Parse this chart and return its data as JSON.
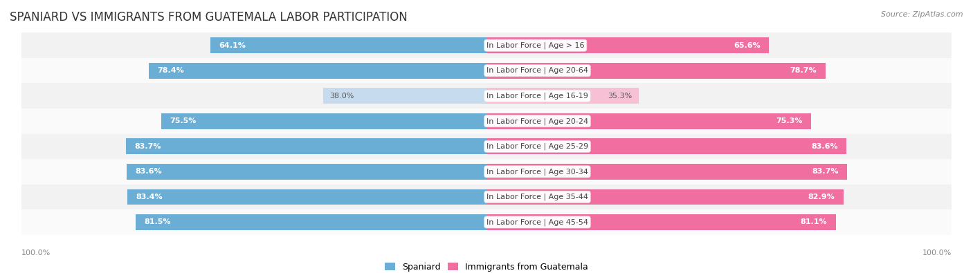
{
  "title": "SPANIARD VS IMMIGRANTS FROM GUATEMALA LABOR PARTICIPATION",
  "source": "Source: ZipAtlas.com",
  "categories": [
    "In Labor Force | Age > 16",
    "In Labor Force | Age 20-64",
    "In Labor Force | Age 16-19",
    "In Labor Force | Age 20-24",
    "In Labor Force | Age 25-29",
    "In Labor Force | Age 30-34",
    "In Labor Force | Age 35-44",
    "In Labor Force | Age 45-54"
  ],
  "spaniard_values": [
    64.1,
    78.4,
    38.0,
    75.5,
    83.7,
    83.6,
    83.4,
    81.5
  ],
  "guatemala_values": [
    65.6,
    78.7,
    35.3,
    75.3,
    83.6,
    83.7,
    82.9,
    81.1
  ],
  "spaniard_color": "#6AAED6",
  "spaniard_color_light": "#C6DCEE",
  "guatemala_color": "#F06EA0",
  "guatemala_color_light": "#F8C0D4",
  "row_bg_even": "#F2F2F2",
  "row_bg_odd": "#FAFAFA",
  "max_value": 100.0,
  "bar_height": 0.62,
  "title_fontsize": 12,
  "label_fontsize": 8,
  "value_fontsize": 8,
  "legend_fontsize": 9,
  "axis_label_left": "100.0%",
  "axis_label_right": "100.0%"
}
